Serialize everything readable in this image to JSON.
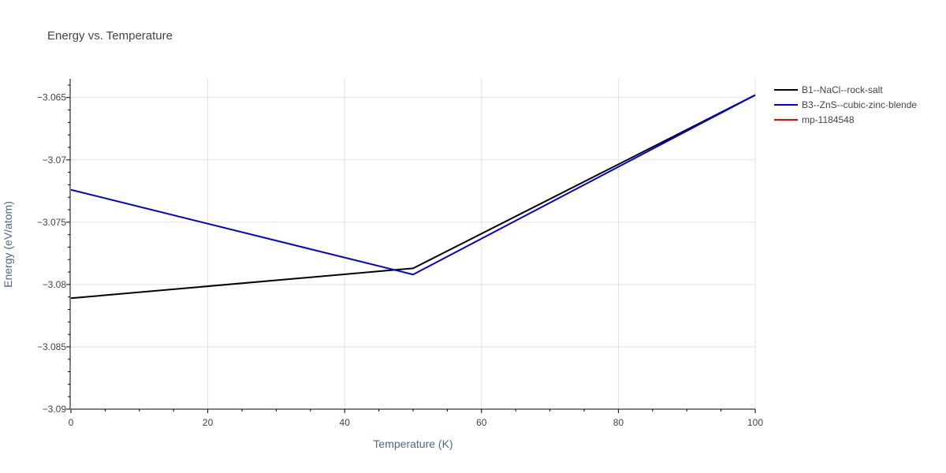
{
  "chart_data": {
    "type": "line",
    "title": "Energy vs. Temperature",
    "xlabel": "Temperature (K)",
    "ylabel": "Energy (eV/atom)",
    "xlim": [
      0,
      100
    ],
    "ylim": [
      -3.09,
      -3.0635
    ],
    "x_ticks": [
      0,
      20,
      40,
      60,
      80,
      100
    ],
    "y_ticks": [
      -3.065,
      -3.07,
      -3.075,
      -3.08,
      -3.085,
      -3.09
    ],
    "x_tick_labels": [
      "0",
      "20",
      "40",
      "60",
      "80",
      "100"
    ],
    "y_tick_labels": [
      "−3.065",
      "−3.07",
      "−3.075",
      "−3.08",
      "−3.085",
      "−3.09"
    ],
    "grid": true,
    "legend_position": "right",
    "series": [
      {
        "name": "B1--NaCl--rock-salt",
        "color": "#000000",
        "x": [
          0,
          50,
          100
        ],
        "y": [
          -3.0811,
          -3.0787,
          -3.0648
        ]
      },
      {
        "name": "B3--ZnS--cubic-zinc-blende",
        "color": "#0000dd",
        "x": [
          0,
          50,
          100
        ],
        "y": [
          -3.0724,
          -3.0792,
          -3.0648
        ]
      },
      {
        "name": "mp-1184548",
        "color": "#ff0000",
        "x": [],
        "y": []
      }
    ]
  }
}
